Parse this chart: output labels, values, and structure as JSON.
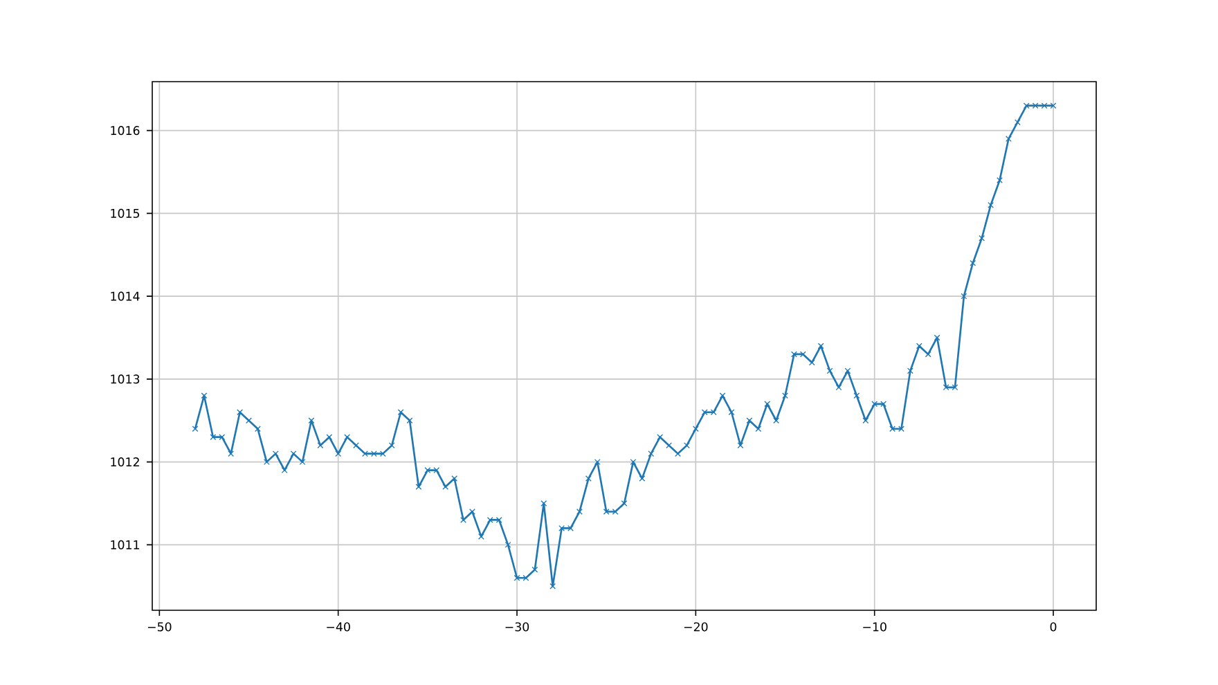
{
  "chart_data": {
    "type": "line",
    "color": "#1f77b4",
    "marker": "cross",
    "grid": true,
    "x": [
      -48,
      -47.5,
      -47,
      -46.5,
      -46,
      -45.5,
      -45,
      -44.5,
      -44,
      -43.5,
      -43,
      -42.5,
      -42,
      -41.5,
      -41,
      -40.5,
      -40,
      -39.5,
      -39,
      -38.5,
      -38,
      -37.5,
      -37,
      -36.5,
      -36,
      -35.5,
      -35,
      -34.5,
      -34,
      -33.5,
      -33,
      -32.5,
      -32,
      -31.5,
      -31,
      -30.5,
      -30,
      -29.5,
      -29,
      -28.5,
      -28,
      -27.5,
      -27,
      -26.5,
      -26,
      -25.5,
      -25,
      -24.5,
      -24,
      -23.5,
      -23,
      -22.5,
      -22,
      -21.5,
      -21,
      -20.5,
      -20,
      -19.5,
      -19,
      -18.5,
      -18,
      -17.5,
      -17,
      -16.5,
      -16,
      -15.5,
      -15,
      -14.5,
      -14,
      -13.5,
      -13,
      -12.5,
      -12,
      -11.5,
      -11,
      -10.5,
      -10,
      -9.5,
      -9,
      -8.5,
      -8,
      -7.5,
      -7,
      -6.5,
      -6,
      -5.5,
      -5,
      -4.5,
      -4,
      -3.5,
      -3,
      -2.5,
      -2,
      -1.5,
      -1,
      -0.5,
      0
    ],
    "values": [
      1012.4,
      1012.8,
      1012.3,
      1012.3,
      1012.1,
      1012.6,
      1012.5,
      1012.4,
      1012.0,
      1012.1,
      1011.9,
      1012.1,
      1012.0,
      1012.5,
      1012.2,
      1012.3,
      1012.1,
      1012.3,
      1012.2,
      1012.1,
      1012.1,
      1012.1,
      1012.2,
      1012.6,
      1012.5,
      1011.7,
      1011.9,
      1011.9,
      1011.7,
      1011.8,
      1011.3,
      1011.4,
      1011.1,
      1011.3,
      1011.3,
      1011.0,
      1010.6,
      1010.6,
      1010.7,
      1011.5,
      1010.5,
      1011.2,
      1011.2,
      1011.4,
      1011.8,
      1012.0,
      1011.4,
      1011.4,
      1011.5,
      1012.0,
      1011.8,
      1012.1,
      1012.3,
      1012.2,
      1012.1,
      1012.2,
      1012.4,
      1012.6,
      1012.6,
      1012.8,
      1012.6,
      1012.2,
      1012.5,
      1012.4,
      1012.7,
      1012.5,
      1012.8,
      1013.3,
      1013.3,
      1013.2,
      1013.4,
      1013.1,
      1012.9,
      1013.1,
      1012.8,
      1012.5,
      1012.7,
      1012.7,
      1012.4,
      1012.4,
      1013.1,
      1013.4,
      1013.3,
      1013.5,
      1012.9,
      1012.9,
      1014.0,
      1014.4,
      1014.7,
      1015.1,
      1015.4,
      1015.9,
      1016.1,
      1016.3,
      1016.3,
      1016.3,
      1016.3
    ],
    "xlim": [
      -50.4,
      2.4
    ],
    "ylim": [
      1010.21,
      1016.59
    ],
    "xticks": [
      {
        "value": -50,
        "label": "−50"
      },
      {
        "value": -40,
        "label": "−40"
      },
      {
        "value": -30,
        "label": "−30"
      },
      {
        "value": -20,
        "label": "−20"
      },
      {
        "value": -10,
        "label": "−10"
      },
      0
    ],
    "yticks": [
      1011,
      1012,
      1013,
      1014,
      1015,
      1016
    ]
  }
}
